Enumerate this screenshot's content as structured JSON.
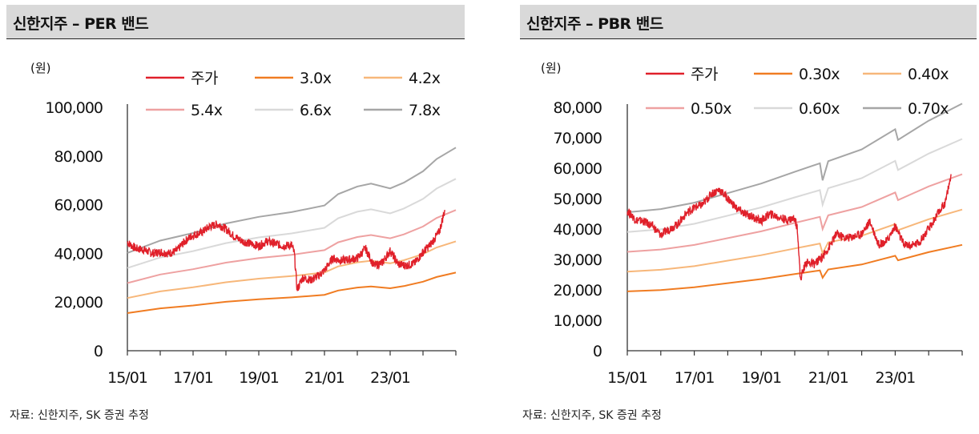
{
  "charts": [
    {
      "title": "신한지주 – PER 밴드",
      "unit": "(원)",
      "source": "자료: 신한지주, SK 증권 추정",
      "chart_data": {
        "type": "line",
        "x_ticks": [
          "15/01",
          "17/01",
          "19/01",
          "21/01",
          "23/01"
        ],
        "x_range": [
          "2015-01",
          "2025-01"
        ],
        "ylim": [
          0,
          100000
        ],
        "y_ticks": [
          "100,000",
          "80,000",
          "60,000",
          "40,000",
          "20,000",
          "0"
        ],
        "legend": [
          "주가",
          "3.0x",
          "4.2x",
          "5.4x",
          "6.6x",
          "7.8x"
        ],
        "bands": [
          {
            "name": "3.0x",
            "color": "#f07c22",
            "multiple": 3.0
          },
          {
            "name": "4.2x",
            "color": "#f7b77a",
            "multiple": 4.2
          },
          {
            "name": "5.4x",
            "color": "#eea1a1",
            "multiple": 5.4
          },
          {
            "name": "6.6x",
            "color": "#d9d9d9",
            "multiple": 6.6
          },
          {
            "name": "7.8x",
            "color": "#a6a6a6",
            "multiple": 7.8
          }
        ],
        "band_base": [
          [
            "2015-01",
            5150
          ],
          [
            "2016-01",
            5800
          ],
          [
            "2017-01",
            6200
          ],
          [
            "2018-01",
            6700
          ],
          [
            "2019-01",
            7050
          ],
          [
            "2020-01",
            7300
          ],
          [
            "2021-01",
            7650
          ],
          [
            "2021-06",
            8250
          ],
          [
            "2022-01",
            8650
          ],
          [
            "2022-06",
            8800
          ],
          [
            "2023-01",
            8550
          ],
          [
            "2023-06",
            8850
          ],
          [
            "2024-01",
            9450
          ],
          [
            "2024-06",
            10100
          ],
          [
            "2025-01",
            10700
          ]
        ],
        "price": {
          "name": "주가",
          "color": "#e0202a",
          "points": [
            [
              "2015-01",
              44500
            ],
            [
              "2015-04",
              42000
            ],
            [
              "2015-07",
              41500
            ],
            [
              "2015-10",
              40000
            ],
            [
              "2016-01",
              40500
            ],
            [
              "2016-04",
              40000
            ],
            [
              "2016-07",
              41000
            ],
            [
              "2016-10",
              45000
            ],
            [
              "2017-01",
              47500
            ],
            [
              "2017-04",
              48500
            ],
            [
              "2017-07",
              51000
            ],
            [
              "2017-10",
              52000
            ],
            [
              "2018-01",
              50000
            ],
            [
              "2018-04",
              47000
            ],
            [
              "2018-07",
              45000
            ],
            [
              "2018-10",
              44000
            ],
            [
              "2019-01",
              43000
            ],
            [
              "2019-04",
              45000
            ],
            [
              "2019-07",
              44000
            ],
            [
              "2019-10",
              43000
            ],
            [
              "2020-01",
              43500
            ],
            [
              "2020-02",
              40000
            ],
            [
              "2020-03",
              25000
            ],
            [
              "2020-05",
              30000
            ],
            [
              "2020-08",
              29000
            ],
            [
              "2020-11",
              31000
            ],
            [
              "2021-01",
              33000
            ],
            [
              "2021-04",
              38000
            ],
            [
              "2021-07",
              37000
            ],
            [
              "2021-10",
              37500
            ],
            [
              "2022-01",
              38000
            ],
            [
              "2022-04",
              42000
            ],
            [
              "2022-07",
              35000
            ],
            [
              "2022-10",
              36000
            ],
            [
              "2023-01",
              41000
            ],
            [
              "2023-04",
              35500
            ],
            [
              "2023-07",
              35000
            ],
            [
              "2023-10",
              36000
            ],
            [
              "2024-01",
              40500
            ],
            [
              "2024-04",
              44000
            ],
            [
              "2024-07",
              49000
            ],
            [
              "2024-09",
              58000
            ]
          ]
        }
      }
    },
    {
      "title": "신한지주 – PBR 밴드",
      "unit": "(원)",
      "source": "자료: 신한지주, SK 증권 추정",
      "chart_data": {
        "type": "line",
        "x_ticks": [
          "15/01",
          "17/01",
          "19/01",
          "21/01",
          "23/01"
        ],
        "x_range": [
          "2015-01",
          "2025-01"
        ],
        "ylim": [
          0,
          80000
        ],
        "y_ticks": [
          "80,000",
          "70,000",
          "60,000",
          "50,000",
          "40,000",
          "30,000",
          "20,000",
          "10,000",
          "0"
        ],
        "legend": [
          "주가",
          "0.30x",
          "0.40x",
          "0.50x",
          "0.60x",
          "0.70x"
        ],
        "bands": [
          {
            "name": "0.30x",
            "color": "#f07c22",
            "multiple": 0.3
          },
          {
            "name": "0.40x",
            "color": "#f7b77a",
            "multiple": 0.4
          },
          {
            "name": "0.50x",
            "color": "#eea1a1",
            "multiple": 0.5
          },
          {
            "name": "0.60x",
            "color": "#d9d9d9",
            "multiple": 0.6
          },
          {
            "name": "0.70x",
            "color": "#a6a6a6",
            "multiple": 0.7
          }
        ],
        "band_base": [
          [
            "2015-01",
            65000
          ],
          [
            "2016-01",
            66500
          ],
          [
            "2017-01",
            69500
          ],
          [
            "2018-01",
            74000
          ],
          [
            "2019-01",
            78500
          ],
          [
            "2020-01",
            84000
          ],
          [
            "2020-10",
            88000
          ],
          [
            "2020-11",
            80000
          ],
          [
            "2021-01",
            89000
          ],
          [
            "2022-01",
            94500
          ],
          [
            "2023-01",
            104000
          ],
          [
            "2023-02",
            99000
          ],
          [
            "2024-01",
            108000
          ],
          [
            "2025-01",
            116000
          ]
        ],
        "price": {
          "name": "주가",
          "color": "#e0202a",
          "points": [
            [
              "2015-01",
              46000
            ],
            [
              "2015-04",
              43000
            ],
            [
              "2015-07",
              42500
            ],
            [
              "2015-10",
              41000
            ],
            [
              "2016-01",
              38000
            ],
            [
              "2016-04",
              40000
            ],
            [
              "2016-07",
              41500
            ],
            [
              "2016-10",
              45000
            ],
            [
              "2017-01",
              47000
            ],
            [
              "2017-04",
              48000
            ],
            [
              "2017-07",
              51500
            ],
            [
              "2017-10",
              53000
            ],
            [
              "2018-01",
              50000
            ],
            [
              "2018-04",
              47000
            ],
            [
              "2018-07",
              45000
            ],
            [
              "2018-10",
              44000
            ],
            [
              "2019-01",
              42500
            ],
            [
              "2019-04",
              45000
            ],
            [
              "2019-07",
              44000
            ],
            [
              "2019-10",
              43000
            ],
            [
              "2020-01",
              43500
            ],
            [
              "2020-02",
              40000
            ],
            [
              "2020-03",
              23500
            ],
            [
              "2020-05",
              29000
            ],
            [
              "2020-08",
              28500
            ],
            [
              "2020-11",
              31000
            ],
            [
              "2021-01",
              33500
            ],
            [
              "2021-04",
              38500
            ],
            [
              "2021-07",
              37000
            ],
            [
              "2021-10",
              37500
            ],
            [
              "2022-01",
              38500
            ],
            [
              "2022-04",
              42500
            ],
            [
              "2022-07",
              35000
            ],
            [
              "2022-10",
              36000
            ],
            [
              "2023-01",
              41000
            ],
            [
              "2023-04",
              35000
            ],
            [
              "2023-07",
              34500
            ],
            [
              "2023-10",
              36000
            ],
            [
              "2024-01",
              40000
            ],
            [
              "2024-04",
              44500
            ],
            [
              "2024-07",
              49000
            ],
            [
              "2024-09",
              57500
            ]
          ]
        }
      }
    }
  ]
}
